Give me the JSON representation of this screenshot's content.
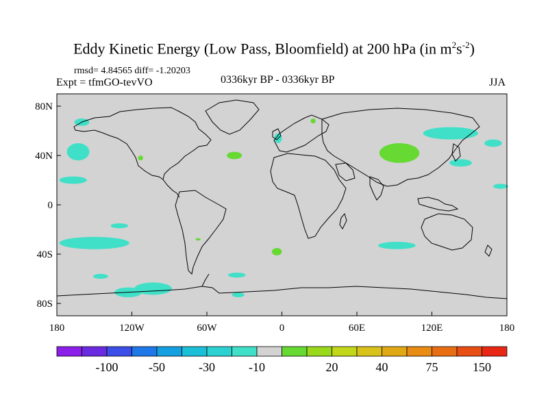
{
  "title": {
    "main": "Eddy Kinetic Energy (Low Pass, Bloomfield) at 200 hPa (in m",
    "sup1": "2",
    "mid": "s",
    "sup2": "-2",
    "end": ")"
  },
  "stats": "rmsd= 4.84565 diff= -1.20203",
  "expt": "Expt = tfmGO-tevVO",
  "period": "0336kyr BP - 0336kyr BP",
  "season": "JJA",
  "map": {
    "land_ocean_color": "#d3d3d3",
    "lat_labels": [
      {
        "text": "80N",
        "lat": 80
      },
      {
        "text": "40N",
        "lat": 40
      },
      {
        "text": "0",
        "lat": 0
      },
      {
        "text": "40S",
        "lat": -40
      },
      {
        "text": "80S",
        "lat": -80
      }
    ],
    "lon_labels": [
      {
        "text": "180",
        "lon": -180
      },
      {
        "text": "120W",
        "lon": -120
      },
      {
        "text": "60W",
        "lon": -60
      },
      {
        "text": "0",
        "lon": 0
      },
      {
        "text": "60E",
        "lon": 60
      },
      {
        "text": "120E",
        "lon": 120
      },
      {
        "text": "180",
        "lon": 180
      }
    ],
    "anomalies": [
      {
        "name": "n-pacific-west",
        "lon": -160,
        "lat": 67,
        "rlon": 6,
        "rlat": 3,
        "color": "#40e0c8"
      },
      {
        "name": "n-pacific-east",
        "lon": -163,
        "lat": 43,
        "rlon": 9,
        "rlat": 7,
        "color": "#40e0c8"
      },
      {
        "name": "hawaii-west",
        "lon": -167,
        "lat": 20,
        "rlon": 11,
        "rlat": 3,
        "color": "#40e0c8"
      },
      {
        "name": "n-america-green",
        "lon": -113,
        "lat": 38,
        "rlon": 2,
        "rlat": 2,
        "color": "#66d933"
      },
      {
        "name": "n-atlantic-green",
        "lon": -38,
        "lat": 40,
        "rlon": 6,
        "rlat": 3,
        "color": "#66d933"
      },
      {
        "name": "scandinavia-green",
        "lon": 25,
        "lat": 68,
        "rlon": 2,
        "rlat": 2,
        "color": "#66d933"
      },
      {
        "name": "europe-cyan",
        "lon": -3,
        "lat": 54,
        "rlon": 3,
        "rlat": 4,
        "color": "#40e0c8"
      },
      {
        "name": "central-asia-green",
        "lon": 94,
        "lat": 42,
        "rlon": 16,
        "rlat": 8,
        "color": "#66d933"
      },
      {
        "name": "n-pacific-asia",
        "lon": 135,
        "lat": 58,
        "rlon": 22,
        "rlat": 5,
        "color": "#40e0c8"
      },
      {
        "name": "japan-cyan",
        "lon": 143,
        "lat": 34,
        "rlon": 9,
        "rlat": 3,
        "color": "#40e0c8"
      },
      {
        "name": "ne-pacific-cyan",
        "lon": 169,
        "lat": 50,
        "rlon": 7,
        "rlat": 3,
        "color": "#40e0c8"
      },
      {
        "name": "nw-pacific-far",
        "lon": 175,
        "lat": 15,
        "rlon": 6,
        "rlat": 2,
        "color": "#40e0c8"
      },
      {
        "name": "s-pacific-1",
        "lon": -130,
        "lat": -17,
        "rlon": 7,
        "rlat": 2,
        "color": "#40e0c8"
      },
      {
        "name": "s-pacific-2",
        "lon": -150,
        "lat": -31,
        "rlon": 28,
        "rlat": 5,
        "color": "#40e0c8"
      },
      {
        "name": "s-pacific-3",
        "lon": -145,
        "lat": -58,
        "rlon": 6,
        "rlat": 2,
        "color": "#40e0c8"
      },
      {
        "name": "s-pacific-4",
        "lon": -103,
        "lat": -68,
        "rlon": 15,
        "rlat": 5,
        "color": "#40e0c8"
      },
      {
        "name": "s-pacific-5",
        "lon": -123,
        "lat": -71,
        "rlon": 11,
        "rlat": 4,
        "color": "#40e0c8"
      },
      {
        "name": "s-america-green",
        "lon": -67,
        "lat": -28,
        "rlon": 2,
        "rlat": 1,
        "color": "#66d933"
      },
      {
        "name": "s-atlantic-green",
        "lon": -4,
        "lat": -38,
        "rlon": 4,
        "rlat": 3,
        "color": "#66d933"
      },
      {
        "name": "s-atlantic-cyan",
        "lon": -36,
        "lat": -57,
        "rlon": 7,
        "rlat": 2,
        "color": "#40e0c8"
      },
      {
        "name": "s-atlantic-cyan2",
        "lon": -35,
        "lat": -73,
        "rlon": 5,
        "rlat": 2,
        "color": "#40e0c8"
      },
      {
        "name": "indian-ocean-cyan",
        "lon": 92,
        "lat": -33,
        "rlon": 15,
        "rlat": 3,
        "color": "#40e0c8"
      }
    ]
  },
  "colorbar": {
    "colors": [
      "#8b1ee8",
      "#6a2be0",
      "#3c4ee8",
      "#1f78e8",
      "#14a0e0",
      "#1cbfd8",
      "#2cd2d2",
      "#40e0c8",
      "#d3d3d3",
      "#66d933",
      "#99d81a",
      "#c2d61a",
      "#d9c21a",
      "#e0a814",
      "#e88c14",
      "#e86e14",
      "#e84e14",
      "#e82814"
    ],
    "labels": [
      {
        "text": "-100",
        "index": 2
      },
      {
        "text": "-50",
        "index": 4
      },
      {
        "text": "-30",
        "index": 6
      },
      {
        "text": "-10",
        "index": 8
      },
      {
        "text": "20",
        "index": 11
      },
      {
        "text": "40",
        "index": 13
      },
      {
        "text": "75",
        "index": 15
      },
      {
        "text": "150",
        "index": 17
      }
    ]
  }
}
